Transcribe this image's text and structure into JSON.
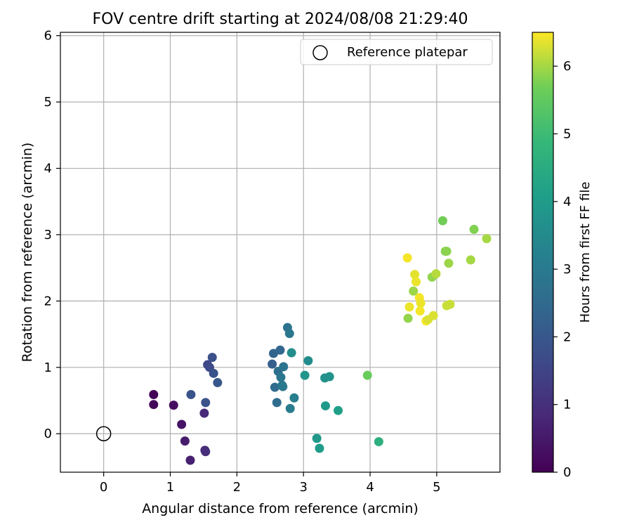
{
  "chart_data": {
    "type": "scatter",
    "title": "FOV centre drift starting at 2024/08/08 21:29:40",
    "xlabel": "Angular distance from reference (arcmin)",
    "ylabel": "Rotation from reference (arcmin)",
    "xlim": [
      -0.65,
      5.95
    ],
    "ylim": [
      -0.58,
      6.05
    ],
    "xticks": [
      0,
      1,
      2,
      3,
      4,
      5
    ],
    "yticks": [
      0,
      1,
      2,
      3,
      4,
      5,
      6
    ],
    "grid": true,
    "legend": {
      "placement": "top-right",
      "entries": [
        "Reference platepar"
      ]
    },
    "reference_point": {
      "name": "Reference platepar",
      "x": 0,
      "y": 0
    },
    "colorbar": {
      "label": "Hours from first FF file",
      "colormap": "viridis",
      "range": [
        0,
        6.5
      ],
      "ticks": [
        0,
        1,
        2,
        3,
        4,
        5,
        6
      ]
    },
    "points": [
      {
        "x": 0.75,
        "y": 0.59,
        "c": 0.05
      },
      {
        "x": 0.75,
        "y": 0.44,
        "c": 0.1
      },
      {
        "x": 1.05,
        "y": 0.43,
        "c": 0.25
      },
      {
        "x": 1.17,
        "y": 0.14,
        "c": 0.4
      },
      {
        "x": 1.22,
        "y": -0.11,
        "c": 0.55
      },
      {
        "x": 1.3,
        "y": -0.4,
        "c": 0.65
      },
      {
        "x": 1.51,
        "y": 0.31,
        "c": 0.85
      },
      {
        "x": 1.52,
        "y": -0.25,
        "c": 0.9
      },
      {
        "x": 1.53,
        "y": -0.27,
        "c": 0.95
      },
      {
        "x": 1.31,
        "y": 0.59,
        "c": 1.9
      },
      {
        "x": 1.53,
        "y": 0.47,
        "c": 1.9
      },
      {
        "x": 1.56,
        "y": 1.04,
        "c": 1.6
      },
      {
        "x": 1.59,
        "y": 1.0,
        "c": 1.65
      },
      {
        "x": 1.63,
        "y": 1.15,
        "c": 1.8
      },
      {
        "x": 1.65,
        "y": 0.91,
        "c": 1.85
      },
      {
        "x": 1.71,
        "y": 0.77,
        "c": 2.0
      },
      {
        "x": 2.53,
        "y": 1.05,
        "c": 2.2
      },
      {
        "x": 2.55,
        "y": 1.21,
        "c": 2.35
      },
      {
        "x": 2.57,
        "y": 0.7,
        "c": 2.5
      },
      {
        "x": 2.6,
        "y": 0.47,
        "c": 2.6
      },
      {
        "x": 2.62,
        "y": 0.94,
        "c": 2.7
      },
      {
        "x": 2.65,
        "y": 1.26,
        "c": 2.4
      },
      {
        "x": 2.66,
        "y": 0.85,
        "c": 2.85
      },
      {
        "x": 2.68,
        "y": 0.73,
        "c": 2.9
      },
      {
        "x": 2.69,
        "y": 0.71,
        "c": 2.95
      },
      {
        "x": 2.7,
        "y": 1.01,
        "c": 2.8
      },
      {
        "x": 2.76,
        "y": 1.6,
        "c": 2.75
      },
      {
        "x": 2.79,
        "y": 1.51,
        "c": 2.9
      },
      {
        "x": 2.8,
        "y": 0.38,
        "c": 3.05
      },
      {
        "x": 2.82,
        "y": 1.22,
        "c": 3.6
      },
      {
        "x": 2.86,
        "y": 0.54,
        "c": 3.1
      },
      {
        "x": 3.02,
        "y": 0.88,
        "c": 3.8
      },
      {
        "x": 3.07,
        "y": 1.1,
        "c": 3.55
      },
      {
        "x": 3.2,
        "y": -0.07,
        "c": 3.9
      },
      {
        "x": 3.24,
        "y": -0.22,
        "c": 4.0
      },
      {
        "x": 3.32,
        "y": 0.84,
        "c": 3.7
      },
      {
        "x": 3.33,
        "y": 0.42,
        "c": 3.95
      },
      {
        "x": 3.39,
        "y": 0.86,
        "c": 3.75
      },
      {
        "x": 3.52,
        "y": 0.35,
        "c": 4.1
      },
      {
        "x": 3.96,
        "y": 0.88,
        "c": 5.6
      },
      {
        "x": 4.13,
        "y": -0.12,
        "c": 4.6
      },
      {
        "x": 4.56,
        "y": 2.65,
        "c": 6.45
      },
      {
        "x": 4.57,
        "y": 1.74,
        "c": 5.9
      },
      {
        "x": 4.59,
        "y": 1.91,
        "c": 6.4
      },
      {
        "x": 4.65,
        "y": 2.15,
        "c": 5.95
      },
      {
        "x": 4.67,
        "y": 2.4,
        "c": 6.35
      },
      {
        "x": 4.69,
        "y": 2.29,
        "c": 6.4
      },
      {
        "x": 4.74,
        "y": 2.05,
        "c": 6.45
      },
      {
        "x": 4.75,
        "y": 1.85,
        "c": 6.45
      },
      {
        "x": 4.76,
        "y": 1.97,
        "c": 6.4
      },
      {
        "x": 4.84,
        "y": 1.7,
        "c": 6.45
      },
      {
        "x": 4.87,
        "y": 1.72,
        "c": 6.3
      },
      {
        "x": 4.93,
        "y": 2.36,
        "c": 5.9
      },
      {
        "x": 4.95,
        "y": 1.78,
        "c": 6.3
      },
      {
        "x": 4.99,
        "y": 2.41,
        "c": 6.1
      },
      {
        "x": 5.09,
        "y": 3.21,
        "c": 5.7
      },
      {
        "x": 5.13,
        "y": 2.75,
        "c": 5.8
      },
      {
        "x": 5.15,
        "y": 2.75,
        "c": 5.85
      },
      {
        "x": 5.15,
        "y": 1.93,
        "c": 6.2
      },
      {
        "x": 5.18,
        "y": 2.57,
        "c": 5.95
      },
      {
        "x": 5.2,
        "y": 1.95,
        "c": 6.2
      },
      {
        "x": 5.51,
        "y": 2.62,
        "c": 6.0
      },
      {
        "x": 5.56,
        "y": 3.08,
        "c": 5.8
      },
      {
        "x": 5.75,
        "y": 2.94,
        "c": 6.0
      }
    ]
  }
}
